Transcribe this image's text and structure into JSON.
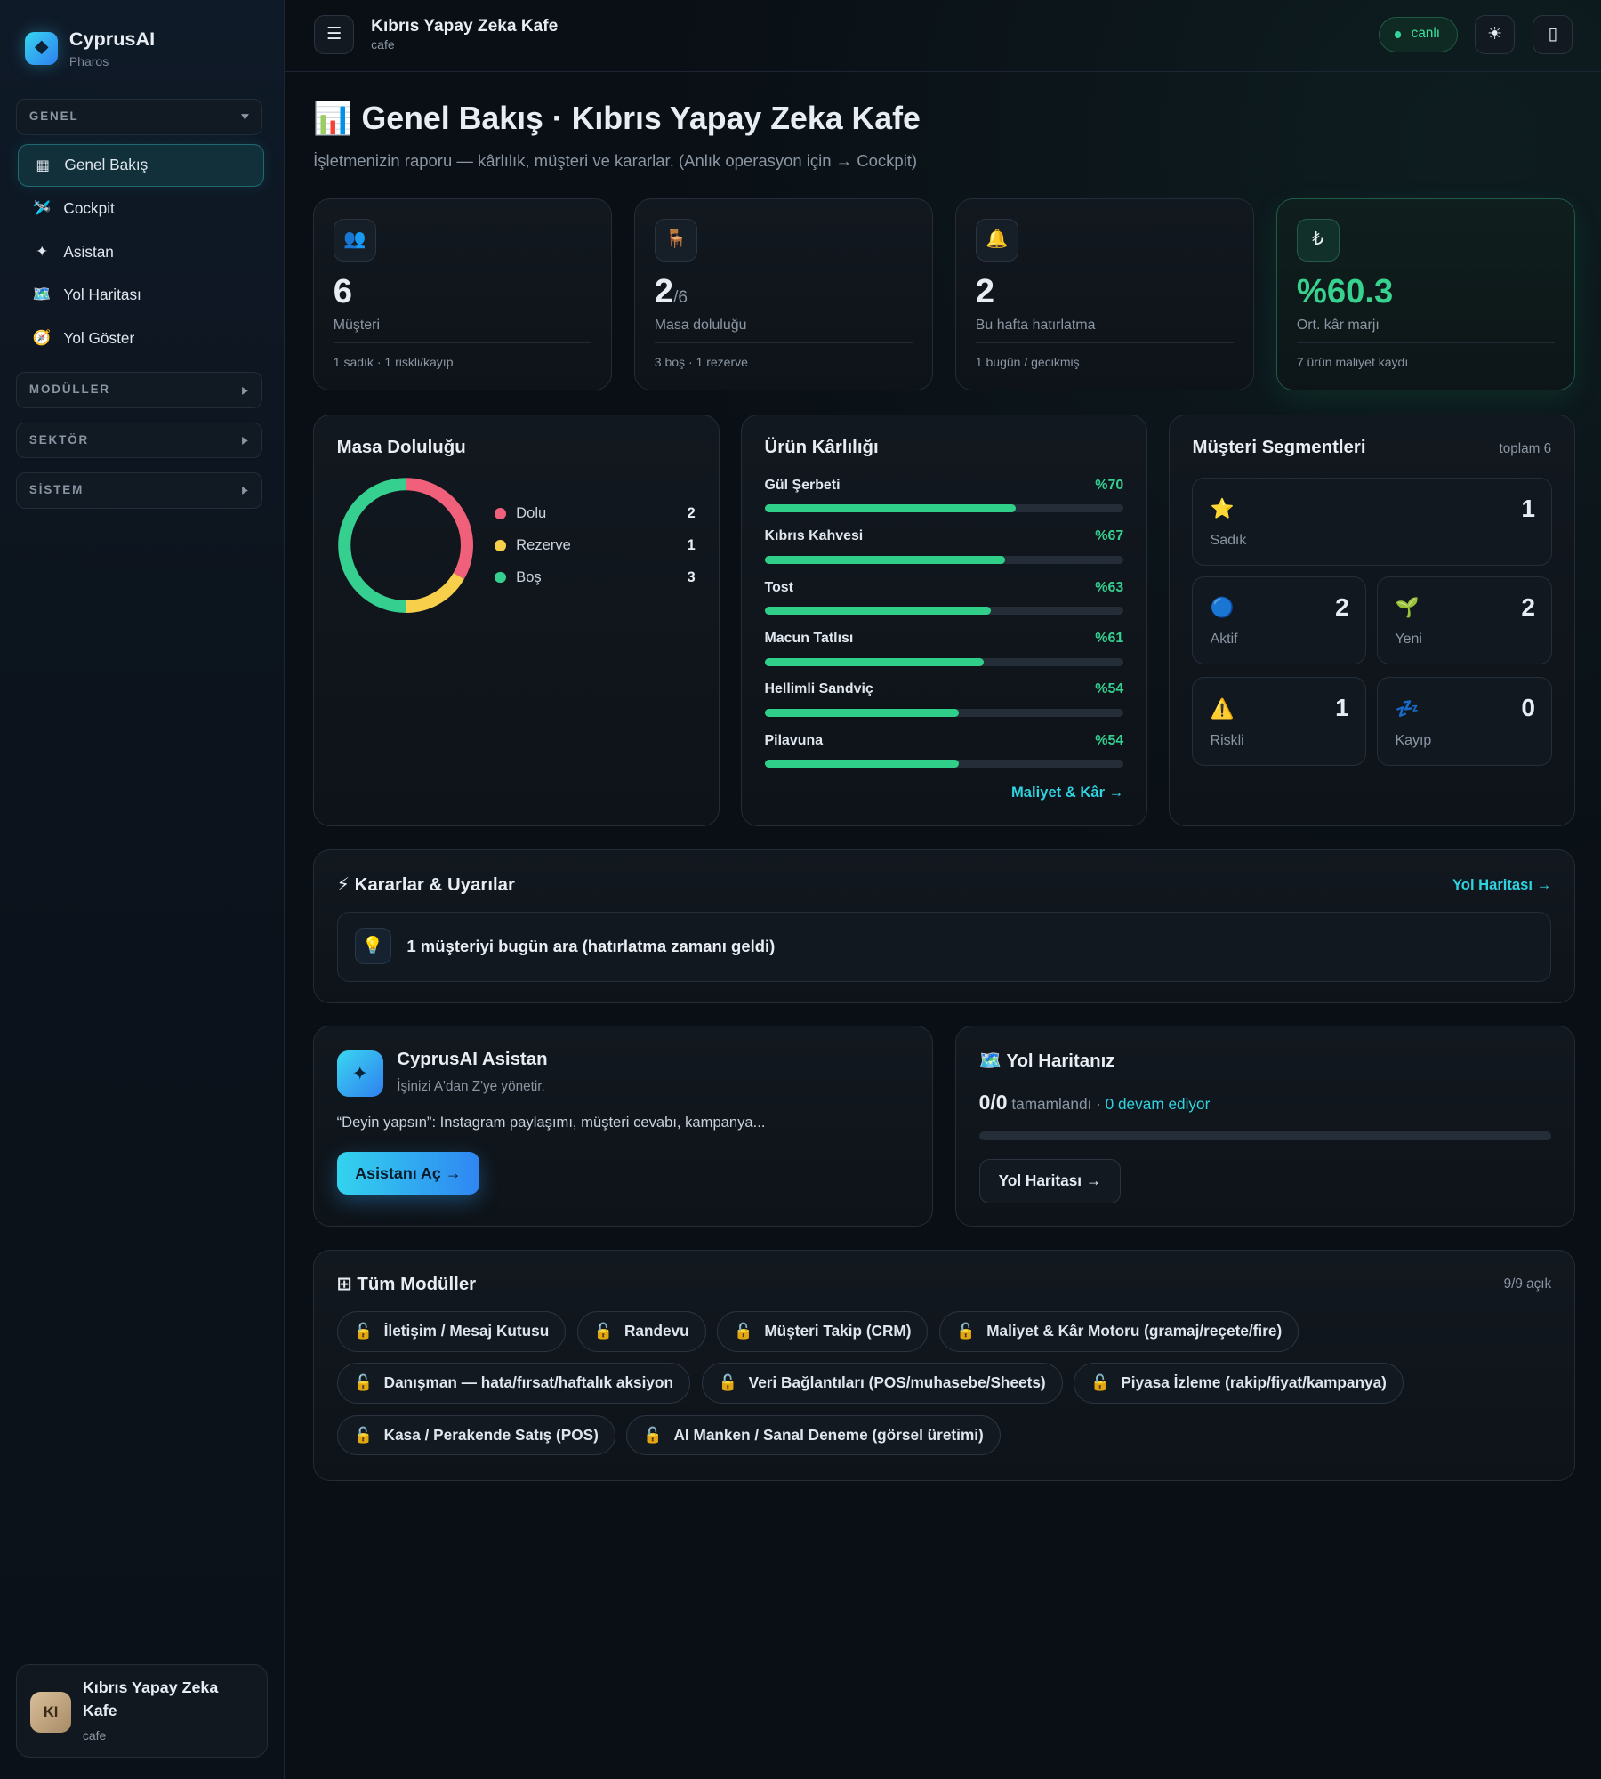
{
  "sidebar": {
    "brand": {
      "name": "CyprusAI",
      "sub": "Pharos"
    },
    "sections": [
      {
        "title": "GENEL",
        "expanded": true
      },
      {
        "title": "MODÜLLER",
        "expanded": false
      },
      {
        "title": "SEKTÖR",
        "expanded": false
      },
      {
        "title": "SİSTEM",
        "expanded": false
      }
    ],
    "nav": [
      {
        "icon": "▦",
        "label": "Genel Bakış",
        "active": true
      },
      {
        "icon": "🛩️",
        "label": "Cockpit",
        "active": false
      },
      {
        "icon": "✦",
        "label": "Asistan",
        "active": false
      },
      {
        "icon": "🗺️",
        "label": "Yol Haritası",
        "active": false
      },
      {
        "icon": "🧭",
        "label": "Yol Göster",
        "active": false
      }
    ],
    "account": {
      "initials": "KI",
      "name": "Kıbrıs Yapay Zeka Kafe",
      "type": "cafe"
    }
  },
  "header": {
    "menu": "☰",
    "title": "Kıbrıs Yapay Zeka Kafe",
    "subtitle": "cafe",
    "status": "canlı",
    "theme": "☀",
    "device": "▯"
  },
  "page": {
    "icon": "📊",
    "title": "Genel Bakış · Kıbrıs Yapay Zeka Kafe",
    "subtitle": "İşletmenizin raporu — kârlılık, müşteri ve kararlar. (Anlık operasyon için → Cockpit)"
  },
  "kpis": [
    {
      "icon": "👥",
      "value": "6",
      "label": "Müşteri",
      "note": "1 sadık · 1 riskli/kayıp"
    },
    {
      "icon": "🪑",
      "value": "2",
      "suffix": "/6",
      "label": "Masa doluluğu",
      "note": "3 boş · 1 rezerve"
    },
    {
      "icon": "🔔",
      "value": "2",
      "label": "Bu hafta hatırlatma",
      "note": "1 bugün / gecikmiş"
    },
    {
      "icon": "₺",
      "value": "%60.3",
      "label": "Ort. kâr marjı",
      "note": "7 ürün maliyet kaydı",
      "highlight": true
    }
  ],
  "occupancy": {
    "title": "Masa Doluluğu",
    "items": [
      {
        "name": "Dolu",
        "value": 2,
        "color": "#f0607a"
      },
      {
        "name": "Rezerve",
        "value": 1,
        "color": "#f7cf4a"
      },
      {
        "name": "Boş",
        "value": 3,
        "color": "#35d08f"
      }
    ]
  },
  "products": {
    "title": "Ürün Kârlılığı",
    "max": 100,
    "link": "Maliyet & Kâr →",
    "items": [
      {
        "name": "Gül Şerbeti",
        "margin": 70,
        "label": "%70"
      },
      {
        "name": "Kıbrıs Kahvesi",
        "margin": 67,
        "label": "%67"
      },
      {
        "name": "Tost",
        "margin": 63,
        "label": "%63"
      },
      {
        "name": "Macun Tatlısı",
        "margin": 61,
        "label": "%61"
      },
      {
        "name": "Hellimli Sandviç",
        "margin": 54,
        "label": "%54"
      },
      {
        "name": "Pilavuna",
        "margin": 54,
        "label": "%54"
      }
    ]
  },
  "segments": {
    "title": "Müşteri Segmentleri",
    "total": "toplam 6",
    "items": [
      {
        "icon": "⭐",
        "name": "Sadık",
        "value": 1
      },
      {
        "icon": "🔵",
        "name": "Aktif",
        "value": 2
      },
      {
        "icon": "🌱",
        "name": "Yeni",
        "value": 2
      },
      {
        "icon": "⚠️",
        "name": "Riskli",
        "value": 1
      },
      {
        "icon": "💤",
        "name": "Kayıp",
        "value": 0
      }
    ]
  },
  "decisions": {
    "icon": "⚡",
    "title": "Kararlar & Uyarılar",
    "link": "Yol Haritası →",
    "items": [
      {
        "icon": "💡",
        "text": "1 müşteriyi bugün ara (hatırlatma zamanı geldi)"
      }
    ]
  },
  "assistant": {
    "icon": "✦",
    "title": "CyprusAI Asistan",
    "subtitle": "İşinizi A'dan Z'ye yönetir.",
    "text": "“Deyin yapsın”: Instagram paylaşımı, müşteri cevabı, kampanya...",
    "button": "Asistanı Aç →"
  },
  "roadmap": {
    "icon": "🗺️",
    "title": "Yol Haritanız",
    "progress": "0/0",
    "done": "tamamlandı ·",
    "ongoing": "0 devam ediyor",
    "button": "Yol Haritası →"
  },
  "modules": {
    "icon": "⊞",
    "title": "Tüm Modüller",
    "count": "9/9 açık",
    "lock_icon": "🔓",
    "items": [
      "İletişim / Mesaj Kutusu",
      "Randevu",
      "Müşteri Takip (CRM)",
      "Maliyet & Kâr Motoru (gramaj/reçete/fire)",
      "Danışman — hata/fırsat/haftalık aksiyon",
      "Veri Bağlantıları (POS/muhasebe/Sheets)",
      "Piyasa İzleme (rakip/fiyat/kampanya)",
      "Kasa / Perakende Satış (POS)",
      "AI Manken / Sanal Deneme (görsel üretimi)"
    ]
  }
}
